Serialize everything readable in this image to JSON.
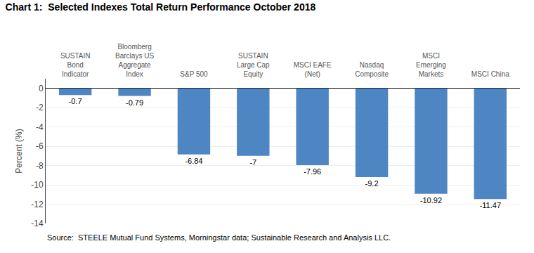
{
  "chart_data": {
    "type": "bar",
    "title": "Chart 1:  Selected Indexes Total Return Performance October 2018",
    "categories": [
      "SUSTAIN\nBond\nIndicator",
      "Bloomberg\nBarclays US\nAggregate\nIndex",
      "S&P 500",
      "SUSTAIN\nLarge Cap\nEquity",
      "MSCI EAFE\n(Net)",
      "Nasdaq\nComposite",
      "MSCI\nEmerging\nMarkets",
      "MSCI China"
    ],
    "values": [
      -0.7,
      -0.79,
      -6.84,
      -7,
      -7.96,
      -9.2,
      -10.92,
      -11.47
    ],
    "data_labels": true,
    "color": "#4E86C4",
    "ylabel": "Percent (%)",
    "ylim": [
      -14,
      1
    ],
    "yticks": [
      0,
      -2,
      -4,
      -6,
      -8,
      -10,
      -12,
      -14
    ],
    "grid": true,
    "source": "Source:  STEELE Mutual Fund Systems, Morningstar data; Sustainable Research and Analysis LLC."
  }
}
